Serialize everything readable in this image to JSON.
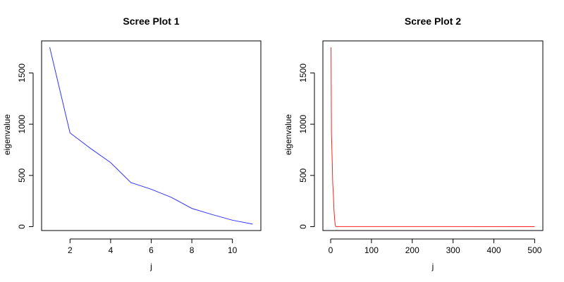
{
  "chart_data": [
    {
      "type": "line",
      "title": "Scree Plot 1",
      "xlabel": "j",
      "ylabel": "eigenvalue",
      "color": "#3333ff",
      "x": [
        1,
        2,
        3,
        4,
        5,
        6,
        7,
        8,
        9,
        10,
        11
      ],
      "values": [
        1750,
        915,
        765,
        625,
        430,
        365,
        285,
        178,
        118,
        63,
        25
      ],
      "xlim": [
        0.6,
        11.4
      ],
      "ylim": [
        -38,
        1813
      ],
      "xticks": [
        2,
        4,
        6,
        8,
        10
      ],
      "yticks": [
        0,
        500,
        1000,
        1500
      ],
      "grid": false,
      "legend": false
    },
    {
      "type": "line",
      "title": "Scree Plot 2",
      "xlabel": "j",
      "ylabel": "eigenvalue",
      "color": "#ff2222",
      "x": [
        1,
        2,
        3,
        4,
        5,
        6,
        7,
        8,
        9,
        10,
        11,
        12,
        13,
        500
      ],
      "values": [
        1750,
        915,
        765,
        625,
        430,
        365,
        285,
        178,
        118,
        63,
        25,
        8,
        1,
        0
      ],
      "xlim": [
        -19,
        520
      ],
      "ylim": [
        -38,
        1813
      ],
      "xticks": [
        0,
        100,
        200,
        300,
        400,
        500
      ],
      "yticks": [
        0,
        500,
        1000,
        1500
      ],
      "grid": false,
      "legend": false
    }
  ]
}
